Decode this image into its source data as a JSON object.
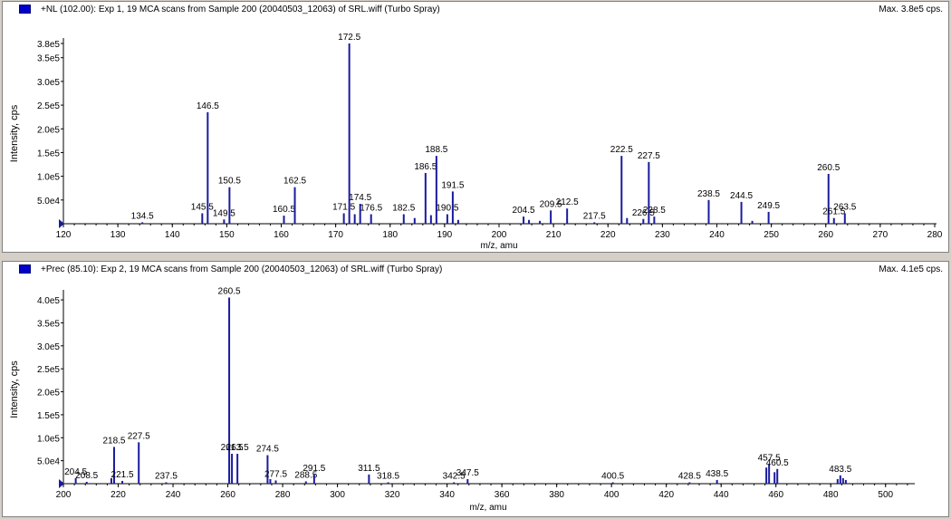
{
  "chart_data": [
    {
      "type": "bar",
      "title": "+NL (102.00): Exp 1, 19 MCA scans from Sample 200 (20040503_12063) of SRL.wiff (Turbo Spray)",
      "max_label": "Max. 3.8e5 cps.",
      "xlabel": "m/z, amu",
      "ylabel": "Intensity, cps",
      "xlim": [
        120,
        280
      ],
      "ylim": [
        0,
        380000
      ],
      "x_ticks": [
        "120",
        "130",
        "140",
        "150",
        "160",
        "170",
        "180",
        "190",
        "200",
        "210",
        "220",
        "230",
        "240",
        "250",
        "260",
        "270",
        "280"
      ],
      "y_ticks": [
        {
          "label": "5.0e4",
          "value": 50000
        },
        {
          "label": "1.0e5",
          "value": 100000
        },
        {
          "label": "1.5e5",
          "value": 150000
        },
        {
          "label": "2.0e5",
          "value": 200000
        },
        {
          "label": "2.5e5",
          "value": 250000
        },
        {
          "label": "3.0e5",
          "value": 300000
        },
        {
          "label": "3.5e5",
          "value": 350000
        },
        {
          "label": "3.8e5",
          "value": 380000
        }
      ],
      "color": "#1a1aa0",
      "peaks": [
        {
          "x": 134.5,
          "y": 3000,
          "label": "134.5"
        },
        {
          "x": 145.5,
          "y": 22000,
          "label": "145.5"
        },
        {
          "x": 146.5,
          "y": 235000,
          "label": "146.5"
        },
        {
          "x": 149.5,
          "y": 9000,
          "label": "149.5"
        },
        {
          "x": 150.5,
          "y": 77000,
          "label": "150.5"
        },
        {
          "x": 160.5,
          "y": 17000,
          "label": "160.5"
        },
        {
          "x": 162.5,
          "y": 77000,
          "label": "162.5"
        },
        {
          "x": 171.5,
          "y": 22000,
          "label": "171.5"
        },
        {
          "x": 172.5,
          "y": 380000,
          "label": "172.5"
        },
        {
          "x": 173.5,
          "y": 20000,
          "label": ""
        },
        {
          "x": 174.5,
          "y": 42000,
          "label": "174.5"
        },
        {
          "x": 176.5,
          "y": 20000,
          "label": "176.5"
        },
        {
          "x": 182.5,
          "y": 20000,
          "label": "182.5"
        },
        {
          "x": 184.5,
          "y": 12000,
          "label": ""
        },
        {
          "x": 186.5,
          "y": 107000,
          "label": "186.5"
        },
        {
          "x": 187.5,
          "y": 18000,
          "label": ""
        },
        {
          "x": 188.5,
          "y": 143000,
          "label": "188.5"
        },
        {
          "x": 190.5,
          "y": 20000,
          "label": "190.5"
        },
        {
          "x": 191.5,
          "y": 68000,
          "label": "191.5"
        },
        {
          "x": 192.5,
          "y": 8000,
          "label": ""
        },
        {
          "x": 204.5,
          "y": 15000,
          "label": "204.5"
        },
        {
          "x": 205.5,
          "y": 8000,
          "label": ""
        },
        {
          "x": 207.5,
          "y": 6000,
          "label": ""
        },
        {
          "x": 209.5,
          "y": 28000,
          "label": "209.5"
        },
        {
          "x": 212.5,
          "y": 32000,
          "label": "212.5"
        },
        {
          "x": 217.5,
          "y": 3000,
          "label": "217.5"
        },
        {
          "x": 222.5,
          "y": 143000,
          "label": "222.5"
        },
        {
          "x": 223.5,
          "y": 12000,
          "label": ""
        },
        {
          "x": 226.5,
          "y": 10000,
          "label": "226.5"
        },
        {
          "x": 227.5,
          "y": 130000,
          "label": "227.5"
        },
        {
          "x": 228.5,
          "y": 15000,
          "label": "228.5"
        },
        {
          "x": 238.5,
          "y": 50000,
          "label": "238.5"
        },
        {
          "x": 244.5,
          "y": 46000,
          "label": "244.5"
        },
        {
          "x": 246.5,
          "y": 6000,
          "label": ""
        },
        {
          "x": 249.5,
          "y": 25000,
          "label": "249.5"
        },
        {
          "x": 260.5,
          "y": 105000,
          "label": "260.5"
        },
        {
          "x": 261.5,
          "y": 12000,
          "label": "261.5"
        },
        {
          "x": 263.5,
          "y": 22000,
          "label": "263.5"
        }
      ]
    },
    {
      "type": "bar",
      "title": "+Prec (85.10): Exp 2, 19 MCA scans from Sample 200 (20040503_12063) of SRL.wiff (Turbo Spray)",
      "max_label": "Max. 4.1e5 cps.",
      "xlabel": "m/z, amu",
      "ylabel": "Intensity, cps",
      "xlim": [
        200,
        510
      ],
      "ylim": [
        0,
        410000
      ],
      "x_ticks": [
        "200",
        "220",
        "240",
        "260",
        "280",
        "300",
        "320",
        "340",
        "360",
        "380",
        "400",
        "420",
        "440",
        "460",
        "480",
        "500"
      ],
      "y_ticks": [
        {
          "label": "5.0e4",
          "value": 50000
        },
        {
          "label": "1.0e5",
          "value": 100000
        },
        {
          "label": "1.5e5",
          "value": 150000
        },
        {
          "label": "2.0e5",
          "value": 200000
        },
        {
          "label": "2.5e5",
          "value": 250000
        },
        {
          "label": "3.0e5",
          "value": 300000
        },
        {
          "label": "3.5e5",
          "value": 350000
        },
        {
          "label": "4.0e5",
          "value": 400000
        }
      ],
      "color": "#1a1aa0",
      "peaks": [
        {
          "x": 204.5,
          "y": 12000,
          "label": "204.5"
        },
        {
          "x": 208.5,
          "y": 4000,
          "label": "208.5"
        },
        {
          "x": 217.5,
          "y": 12000,
          "label": ""
        },
        {
          "x": 218.5,
          "y": 80000,
          "label": "218.5"
        },
        {
          "x": 221.5,
          "y": 6000,
          "label": "221.5"
        },
        {
          "x": 227.5,
          "y": 90000,
          "label": "227.5"
        },
        {
          "x": 237.5,
          "y": 3000,
          "label": "237.5"
        },
        {
          "x": 260.5,
          "y": 405000,
          "label": "260.5"
        },
        {
          "x": 261.5,
          "y": 65000,
          "label": "261.5"
        },
        {
          "x": 263.5,
          "y": 65000,
          "label": "263.5"
        },
        {
          "x": 274.5,
          "y": 62000,
          "label": "274.5"
        },
        {
          "x": 275.5,
          "y": 10000,
          "label": ""
        },
        {
          "x": 277.5,
          "y": 7000,
          "label": "277.5"
        },
        {
          "x": 288.5,
          "y": 5000,
          "label": "288.5"
        },
        {
          "x": 291.5,
          "y": 20000,
          "label": "291.5"
        },
        {
          "x": 311.5,
          "y": 20000,
          "label": "311.5"
        },
        {
          "x": 318.5,
          "y": 3000,
          "label": "318.5"
        },
        {
          "x": 342.5,
          "y": 3000,
          "label": "342.5"
        },
        {
          "x": 347.5,
          "y": 10000,
          "label": "347.5"
        },
        {
          "x": 400.5,
          "y": 3000,
          "label": "400.5"
        },
        {
          "x": 428.5,
          "y": 3000,
          "label": "428.5"
        },
        {
          "x": 438.5,
          "y": 8000,
          "label": "438.5"
        },
        {
          "x": 456.5,
          "y": 35000,
          "label": ""
        },
        {
          "x": 457.5,
          "y": 42000,
          "label": "457.5"
        },
        {
          "x": 459.5,
          "y": 25000,
          "label": ""
        },
        {
          "x": 460.5,
          "y": 32000,
          "label": "460.5"
        },
        {
          "x": 482.5,
          "y": 10000,
          "label": ""
        },
        {
          "x": 483.5,
          "y": 18000,
          "label": "483.5"
        },
        {
          "x": 484.5,
          "y": 12000,
          "label": ""
        },
        {
          "x": 485.5,
          "y": 8000,
          "label": ""
        }
      ]
    }
  ]
}
